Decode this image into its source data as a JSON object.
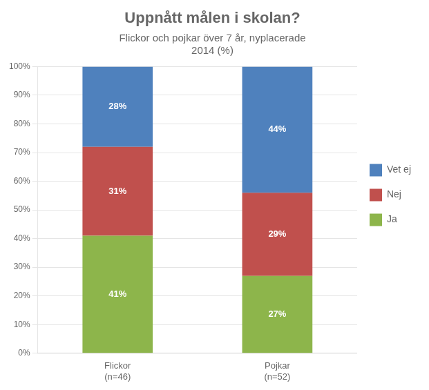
{
  "chart_data": {
    "type": "bar",
    "stacked": true,
    "title": "Uppnått målen i skolan?",
    "subtitle": "Flickor och pojkar över 7 år, nyplacerade\n2014 (%)",
    "categories": [
      "Flickor\n(n=46)",
      "Pojkar\n(n=52)"
    ],
    "series": [
      {
        "name": "Ja",
        "color": "#8db54b",
        "values": [
          41,
          27
        ],
        "value_labels": [
          "41%",
          "27%"
        ]
      },
      {
        "name": "Nej",
        "color": "#c0504d",
        "values": [
          31,
          29
        ],
        "value_labels": [
          "31%",
          "29%"
        ]
      },
      {
        "name": "Vet ej",
        "color": "#4f81bd",
        "values": [
          28,
          44
        ],
        "value_labels": [
          "28%",
          "44%"
        ]
      }
    ],
    "ylim": [
      0,
      100
    ],
    "yticks": [
      {
        "value": 0,
        "label": "0%"
      },
      {
        "value": 10,
        "label": "10%"
      },
      {
        "value": 20,
        "label": "20%"
      },
      {
        "value": 30,
        "label": "30%"
      },
      {
        "value": 40,
        "label": "40%"
      },
      {
        "value": 50,
        "label": "50%"
      },
      {
        "value": 60,
        "label": "60%"
      },
      {
        "value": 70,
        "label": "70%"
      },
      {
        "value": 80,
        "label": "80%"
      },
      {
        "value": 90,
        "label": "90%"
      },
      {
        "value": 100,
        "label": "100%"
      }
    ],
    "grid": "y",
    "legend": "right",
    "data_labels": true
  }
}
